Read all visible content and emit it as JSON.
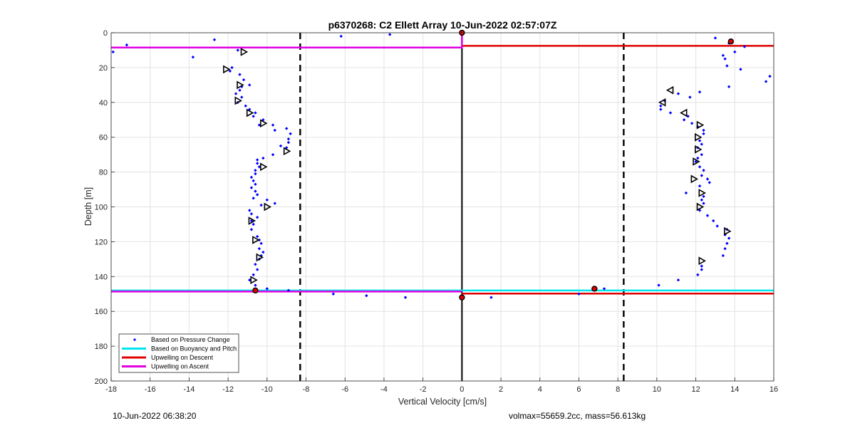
{
  "chart_data": {
    "type": "scatter",
    "title": "p6370268: C2 Ellett Array 10-Jun-2022 02:57:07Z",
    "xlabel": "Vertical Velocity [cm/s]",
    "ylabel": "Depth [m]",
    "xlim": [
      -18,
      16
    ],
    "ylim": [
      0,
      200
    ],
    "y_reversed": true,
    "grid": true,
    "xticks": [
      -18,
      -16,
      -14,
      -12,
      -10,
      -8,
      -6,
      -4,
      -2,
      0,
      2,
      4,
      6,
      8,
      10,
      12,
      14,
      16
    ],
    "yticks": [
      0,
      20,
      40,
      60,
      80,
      100,
      120,
      140,
      160,
      180,
      200
    ],
    "legend_position": "bottom-left",
    "legend": [
      {
        "label": "Based on Pressure Change",
        "color": "#0000ff",
        "marker": "dot"
      },
      {
        "label": "Based on Buoyancy and Pitch",
        "color": "#00e5ee",
        "marker": "line"
      },
      {
        "label": "Upwelling on Descent",
        "color": "#e00000",
        "marker": "line"
      },
      {
        "label": "Upwelling on Ascent",
        "color": "#e000e0",
        "marker": "line"
      }
    ],
    "dashed_verticals": [
      -8.3,
      8.3
    ],
    "zero_line": 0,
    "pressure_change_points": [
      [
        -17.9,
        11
      ],
      [
        -17.2,
        7
      ],
      [
        -13.8,
        14
      ],
      [
        -12.7,
        4
      ],
      [
        -6.2,
        2
      ],
      [
        -3.7,
        1
      ],
      [
        -11.5,
        10
      ],
      [
        -11.8,
        20
      ],
      [
        -11.9,
        22
      ],
      [
        -11.4,
        24
      ],
      [
        -11.2,
        27
      ],
      [
        -11.3,
        31
      ],
      [
        -10.9,
        30
      ],
      [
        -11.4,
        33
      ],
      [
        -11.6,
        35
      ],
      [
        -11.3,
        37
      ],
      [
        -11.5,
        40
      ],
      [
        -11.1,
        42
      ],
      [
        -10.9,
        44
      ],
      [
        -10.6,
        46
      ],
      [
        -10.7,
        48
      ],
      [
        -10.2,
        50
      ],
      [
        -10.4,
        53
      ],
      [
        -9.7,
        53
      ],
      [
        -9.6,
        56
      ],
      [
        -9.0,
        55
      ],
      [
        -8.8,
        58
      ],
      [
        -8.9,
        61
      ],
      [
        -8.9,
        63
      ],
      [
        -9.0,
        66
      ],
      [
        -9.3,
        65
      ],
      [
        -9.7,
        70
      ],
      [
        -10.2,
        72
      ],
      [
        -10.5,
        73
      ],
      [
        -10.5,
        75
      ],
      [
        -10.4,
        77
      ],
      [
        -10.6,
        79
      ],
      [
        -10.6,
        81
      ],
      [
        -10.8,
        83
      ],
      [
        -10.7,
        85
      ],
      [
        -10.6,
        87
      ],
      [
        -10.8,
        89
      ],
      [
        -10.6,
        91
      ],
      [
        -10.5,
        93
      ],
      [
        -10.7,
        95
      ],
      [
        -10.0,
        96
      ],
      [
        -9.6,
        98
      ],
      [
        -10.3,
        99
      ],
      [
        -10.9,
        102
      ],
      [
        -10.8,
        104
      ],
      [
        -10.5,
        106
      ],
      [
        -10.8,
        108
      ],
      [
        -10.7,
        110
      ],
      [
        -10.8,
        113
      ],
      [
        -10.5,
        117
      ],
      [
        -10.4,
        119
      ],
      [
        -10.3,
        121
      ],
      [
        -10.4,
        124
      ],
      [
        -10.2,
        126
      ],
      [
        -10.3,
        128
      ],
      [
        -10.4,
        130
      ],
      [
        -10.6,
        133
      ],
      [
        -10.5,
        136
      ],
      [
        -10.7,
        139
      ],
      [
        -10.9,
        142
      ],
      [
        -10.6,
        145
      ],
      [
        -10.0,
        147
      ],
      [
        -8.9,
        148
      ],
      [
        -6.6,
        150
      ],
      [
        -4.9,
        151
      ],
      [
        -2.9,
        152
      ],
      [
        0.0,
        152
      ],
      [
        1.5,
        152
      ],
      [
        13.0,
        3
      ],
      [
        13.7,
        6
      ],
      [
        14.5,
        8
      ],
      [
        14.0,
        11
      ],
      [
        13.4,
        13
      ],
      [
        13.5,
        15
      ],
      [
        13.6,
        19
      ],
      [
        14.3,
        21
      ],
      [
        15.8,
        25
      ],
      [
        15.6,
        28
      ],
      [
        13.7,
        31
      ],
      [
        12.2,
        34
      ],
      [
        11.1,
        35
      ],
      [
        11.7,
        37
      ],
      [
        10.4,
        39
      ],
      [
        10.2,
        42
      ],
      [
        10.2,
        44
      ],
      [
        10.7,
        46
      ],
      [
        11.6,
        48
      ],
      [
        11.4,
        50
      ],
      [
        11.8,
        52
      ],
      [
        12.1,
        54
      ],
      [
        12.4,
        56
      ],
      [
        12.4,
        58
      ],
      [
        12.2,
        62
      ],
      [
        12.3,
        64
      ],
      [
        12.1,
        66
      ],
      [
        12.3,
        70
      ],
      [
        12.1,
        72
      ],
      [
        12.0,
        74
      ],
      [
        12.2,
        77
      ],
      [
        12.4,
        79
      ],
      [
        12.3,
        82
      ],
      [
        12.6,
        84
      ],
      [
        12.7,
        86
      ],
      [
        12.2,
        88
      ],
      [
        11.5,
        92
      ],
      [
        12.4,
        94
      ],
      [
        12.3,
        96
      ],
      [
        12.4,
        98
      ],
      [
        12.2,
        102
      ],
      [
        12.6,
        105
      ],
      [
        12.9,
        108
      ],
      [
        13.1,
        111
      ],
      [
        13.6,
        113
      ],
      [
        13.5,
        116
      ],
      [
        13.7,
        118
      ],
      [
        13.6,
        121
      ],
      [
        13.5,
        124
      ],
      [
        13.4,
        128
      ],
      [
        12.3,
        134
      ],
      [
        12.3,
        136
      ],
      [
        12.1,
        139
      ],
      [
        11.1,
        142
      ],
      [
        10.1,
        145
      ],
      [
        7.3,
        147
      ],
      [
        6.0,
        150
      ]
    ],
    "buoyancy_pitch_descent": [
      [
        -11.2,
        11
      ],
      [
        -12.1,
        21
      ],
      [
        -11.4,
        30
      ],
      [
        -11.5,
        39
      ],
      [
        -10.9,
        46
      ],
      [
        -10.2,
        52
      ],
      [
        -9.0,
        68
      ],
      [
        -10.2,
        77
      ],
      [
        -10.0,
        100
      ],
      [
        -10.8,
        108
      ],
      [
        -10.6,
        119
      ],
      [
        -10.4,
        129
      ],
      [
        -10.7,
        142
      ],
      [
        12.2,
        53
      ],
      [
        12.1,
        60
      ],
      [
        12.1,
        67
      ],
      [
        12.0,
        74
      ],
      [
        11.9,
        84
      ],
      [
        12.3,
        92
      ],
      [
        12.2,
        100
      ],
      [
        13.6,
        114
      ],
      [
        12.3,
        131
      ]
    ],
    "buoyancy_pitch_ascent": [
      [
        10.7,
        33
      ],
      [
        10.3,
        40
      ],
      [
        11.4,
        46
      ]
    ],
    "red_circle_points": [
      [
        0.0,
        0
      ],
      [
        13.8,
        5
      ],
      [
        6.8,
        147
      ],
      [
        -10.6,
        148
      ],
      [
        0.0,
        152
      ]
    ],
    "horizontal_lines": [
      {
        "series": "Upwelling on Ascent",
        "y": 8.5,
        "x": [
          -18,
          0
        ]
      },
      {
        "series": "Upwelling on Descent",
        "y": 7.5,
        "x": [
          0,
          16
        ]
      },
      {
        "series": "Based on Buoyancy and Pitch",
        "y": 148,
        "x": [
          -18,
          16
        ]
      },
      {
        "series": "Upwelling on Ascent",
        "y": 148.6,
        "x": [
          -18,
          0
        ]
      },
      {
        "series": "Upwelling on Descent",
        "y": 149.8,
        "x": [
          0,
          16
        ]
      }
    ]
  },
  "footer": {
    "timestamp": "10-Jun-2022 06:38:20",
    "params": "volmax=55659.2cc, mass=56.613kg"
  }
}
